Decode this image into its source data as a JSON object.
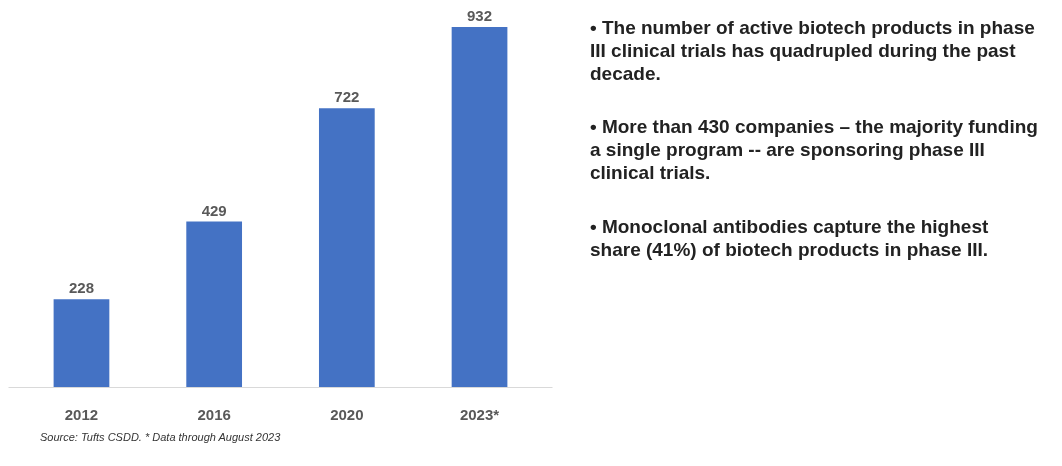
{
  "chart_data": {
    "type": "bar",
    "categories": [
      "2012",
      "2016",
      "2020",
      "2023*"
    ],
    "values": [
      228,
      429,
      722,
      932
    ],
    "color": "#4472c4",
    "data_labels": true,
    "annotations": [
      "• The number of active biotech products in phase III clinical trials has quadrupled during the past decade.",
      "• More than 430 companies – the majority funding a single program -- are sponsoring phase III clinical trials.",
      "• Monoclonal antibodies capture the highest share (41%) of biotech products in phase III.",
      "Source:  Tufts CSDD. * Data through August 2023"
    ]
  }
}
